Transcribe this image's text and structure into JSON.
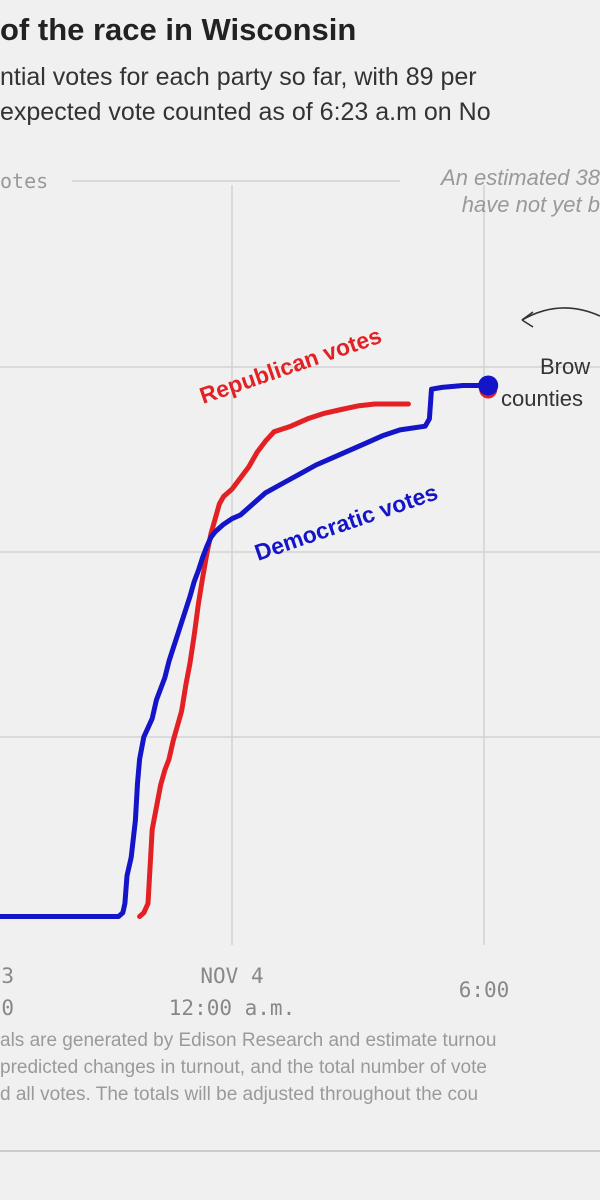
{
  "title": "of the race in Wisconsin",
  "subtitle_lines": [
    "ntial votes for each party so far, with 89 per",
    "expected vote counted as of 6:23 a.m on No"
  ],
  "axis_label": "otes",
  "note_lines": [
    "An estimated 38",
    "have not yet b"
  ],
  "annotation_lines": [
    "Brow",
    "counties"
  ],
  "footer_lines": [
    "als are generated by Edison Research and estimate turnou",
    "predicted changes in turnout, and the total number of vote",
    "d all votes. The totals will be adjusted throughout the cou"
  ],
  "chart_data": {
    "type": "line",
    "x_ticks": [
      {
        "x": -6,
        "lines": [
          "3",
          "0"
        ]
      },
      {
        "x": 0,
        "lines": [
          "NOV 4",
          "12:00 a.m."
        ]
      },
      {
        "x": 6,
        "lines": [
          "6:00"
        ]
      }
    ],
    "grid": true,
    "series": [
      {
        "name": "Republican votes",
        "color": "#e32124",
        "points": [
          [
            -2.2,
            0.03
          ],
          [
            -2.1,
            0.05
          ],
          [
            -2.0,
            0.1
          ],
          [
            -1.95,
            0.3
          ],
          [
            -1.9,
            0.5
          ],
          [
            -1.8,
            0.62
          ],
          [
            -1.7,
            0.74
          ],
          [
            -1.6,
            0.82
          ],
          [
            -1.5,
            0.88
          ],
          [
            -1.4,
            0.98
          ],
          [
            -1.3,
            1.06
          ],
          [
            -1.2,
            1.14
          ],
          [
            -1.1,
            1.28
          ],
          [
            -1.0,
            1.4
          ],
          [
            -0.9,
            1.55
          ],
          [
            -0.8,
            1.72
          ],
          [
            -0.7,
            1.86
          ],
          [
            -0.6,
            1.99
          ],
          [
            -0.5,
            2.1
          ],
          [
            -0.4,
            2.18
          ],
          [
            -0.3,
            2.26
          ],
          [
            -0.2,
            2.3
          ],
          [
            0.0,
            2.34
          ],
          [
            0.2,
            2.4
          ],
          [
            0.4,
            2.46
          ],
          [
            0.6,
            2.54
          ],
          [
            0.8,
            2.6
          ],
          [
            1.0,
            2.65
          ],
          [
            1.4,
            2.68
          ],
          [
            1.8,
            2.72
          ],
          [
            2.2,
            2.75
          ],
          [
            2.6,
            2.77
          ],
          [
            3.0,
            2.79
          ],
          [
            3.4,
            2.8
          ],
          [
            3.6,
            2.8
          ],
          [
            4.2,
            2.8
          ]
        ]
      },
      {
        "name": "Democratic votes",
        "color": "#1414c8",
        "points": [
          [
            -5.6,
            0.03
          ],
          [
            -4.4,
            0.03
          ],
          [
            -2.7,
            0.03
          ],
          [
            -2.6,
            0.05
          ],
          [
            -2.55,
            0.1
          ],
          [
            -2.5,
            0.25
          ],
          [
            -2.4,
            0.35
          ],
          [
            -2.3,
            0.55
          ],
          [
            -2.25,
            0.75
          ],
          [
            -2.2,
            0.88
          ],
          [
            -2.1,
            1.0
          ],
          [
            -2.0,
            1.05
          ],
          [
            -1.9,
            1.1
          ],
          [
            -1.8,
            1.2
          ],
          [
            -1.7,
            1.26
          ],
          [
            -1.6,
            1.32
          ],
          [
            -1.5,
            1.41
          ],
          [
            -1.4,
            1.48
          ],
          [
            -1.3,
            1.55
          ],
          [
            -1.2,
            1.62
          ],
          [
            -1.1,
            1.69
          ],
          [
            -1.0,
            1.76
          ],
          [
            -0.9,
            1.84
          ],
          [
            -0.8,
            1.9
          ],
          [
            -0.7,
            1.97
          ],
          [
            -0.6,
            2.03
          ],
          [
            -0.5,
            2.08
          ],
          [
            -0.4,
            2.11
          ],
          [
            -0.2,
            2.15
          ],
          [
            0.0,
            2.18
          ],
          [
            0.2,
            2.2
          ],
          [
            0.5,
            2.26
          ],
          [
            0.8,
            2.32
          ],
          [
            1.2,
            2.37
          ],
          [
            1.6,
            2.42
          ],
          [
            2.0,
            2.47
          ],
          [
            2.4,
            2.51
          ],
          [
            2.8,
            2.55
          ],
          [
            3.2,
            2.59
          ],
          [
            3.6,
            2.63
          ],
          [
            4.0,
            2.66
          ],
          [
            4.6,
            2.68
          ],
          [
            4.7,
            2.72
          ],
          [
            4.75,
            2.88
          ],
          [
            5.0,
            2.89
          ],
          [
            5.5,
            2.9
          ],
          [
            6.1,
            2.9
          ]
        ]
      }
    ],
    "end_dot": {
      "x": 6.1,
      "y": 2.9,
      "color": "#1414c8"
    },
    "ylim": [
      0,
      3.2
    ],
    "xlim": [
      -6,
      6.3
    ]
  }
}
